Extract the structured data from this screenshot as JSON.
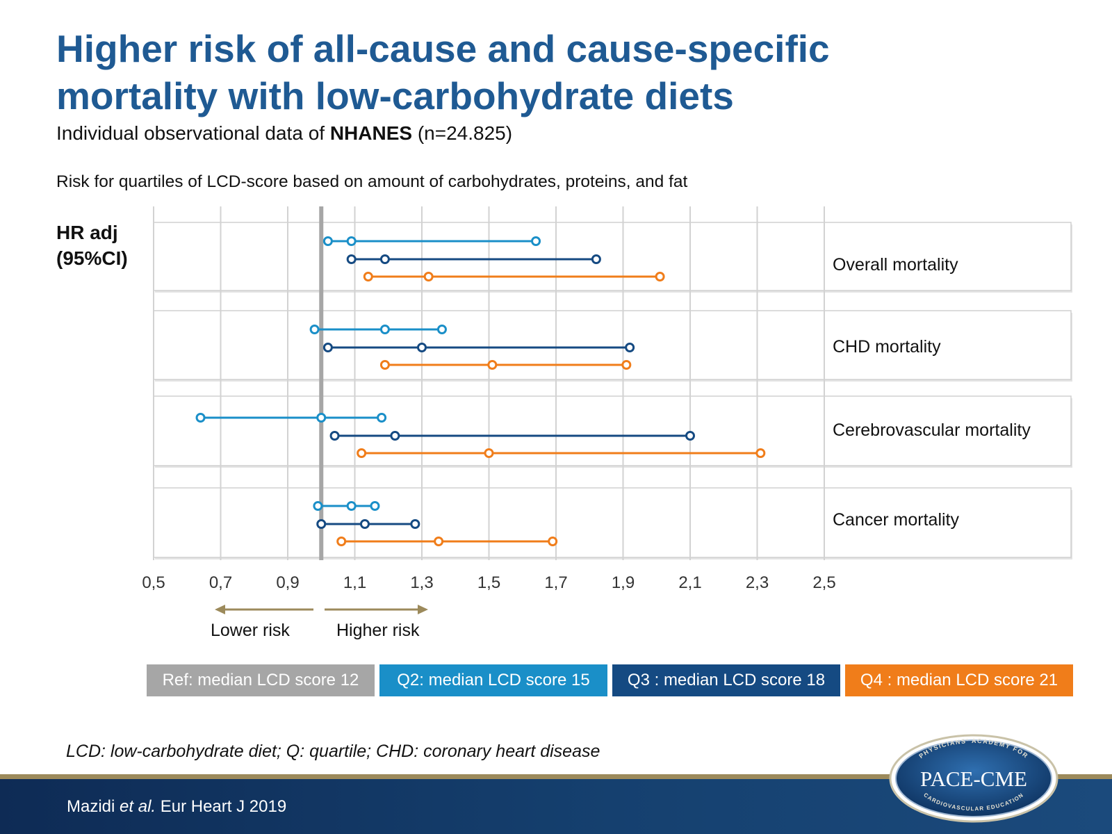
{
  "header": {
    "title_line1": "Higher risk of all-cause and cause-specific",
    "title_line2": "mortality with low-carbohydrate diets",
    "subtitle_prefix": "Individual observational data of",
    "subtitle_bold": "NHANES",
    "subtitle_suffix": "(n=24.825)",
    "description": "Risk for quartiles of LCD-score based on amount of carbohydrates, proteins, and fat"
  },
  "yaxis_label_line1": "HR adj",
  "yaxis_label_line2": "(95%CI)",
  "direction": {
    "lower": "Lower risk",
    "higher": "Higher risk"
  },
  "legend": [
    {
      "label": "Ref: median LCD score 12",
      "color": "#a6a6a6"
    },
    {
      "label": "Q2: median LCD score 15",
      "color": "#1a8fc8"
    },
    {
      "label": "Q3 : median LCD score 18",
      "color": "#154a82"
    },
    {
      "label": "Q4 : median LCD score 21",
      "color": "#f07d1a"
    }
  ],
  "footnote": "LCD: low-carbohydrate diet; Q: quartile; CHD: coronary heart disease",
  "citation_author": "Mazidi",
  "citation_etal": "et al.",
  "citation_source": "Eur Heart J 2019",
  "logo": {
    "name": "PACE-CME",
    "top_arc": "PHYSICIANS' ACADEMY FOR",
    "bottom_arc": "CARDIOVASCULAR EDUCATION"
  },
  "chart_data": {
    "type": "forest",
    "xlim": [
      0.5,
      2.5
    ],
    "xticks": [
      0.5,
      0.7,
      0.9,
      1.1,
      1.3,
      1.5,
      1.7,
      1.9,
      2.1,
      2.3,
      2.5
    ],
    "tick_labels": [
      "0,5",
      "0,7",
      "0,9",
      "1,1",
      "1,3",
      "1,5",
      "1,7",
      "1,9",
      "2,1",
      "2,3",
      "2,5"
    ],
    "reference_line": 1.0,
    "grid": true,
    "groups": [
      {
        "label": "Overall mortality",
        "rows": [
          {
            "series": "Q2",
            "color": "#1a8fc8",
            "low": 1.02,
            "point": 1.09,
            "high": 1.64
          },
          {
            "series": "Q3",
            "color": "#154a82",
            "low": 1.09,
            "point": 1.19,
            "high": 1.82
          },
          {
            "series": "Q4",
            "color": "#f07d1a",
            "low": 1.14,
            "point": 1.32,
            "high": 2.01
          }
        ]
      },
      {
        "label": "CHD mortality",
        "rows": [
          {
            "series": "Q2",
            "color": "#1a8fc8",
            "low": 0.98,
            "point": 1.19,
            "high": 1.36
          },
          {
            "series": "Q3",
            "color": "#154a82",
            "low": 1.02,
            "point": 1.3,
            "high": 1.92
          },
          {
            "series": "Q4",
            "color": "#f07d1a",
            "low": 1.19,
            "point": 1.51,
            "high": 1.91
          }
        ]
      },
      {
        "label": "Cerebrovascular mortality",
        "rows": [
          {
            "series": "Q2",
            "color": "#1a8fc8",
            "low": 0.64,
            "point": 1.0,
            "high": 1.18
          },
          {
            "series": "Q3",
            "color": "#154a82",
            "low": 1.04,
            "point": 1.22,
            "high": 2.1
          },
          {
            "series": "Q4",
            "color": "#f07d1a",
            "low": 1.12,
            "point": 1.5,
            "high": 2.31
          }
        ]
      },
      {
        "label": "Cancer mortality",
        "rows": [
          {
            "series": "Q2",
            "color": "#1a8fc8",
            "low": 0.99,
            "point": 1.09,
            "high": 1.16
          },
          {
            "series": "Q3",
            "color": "#154a82",
            "low": 1.0,
            "point": 1.13,
            "high": 1.28
          },
          {
            "series": "Q4",
            "color": "#f07d1a",
            "low": 1.06,
            "point": 1.35,
            "high": 1.69
          }
        ]
      }
    ]
  }
}
